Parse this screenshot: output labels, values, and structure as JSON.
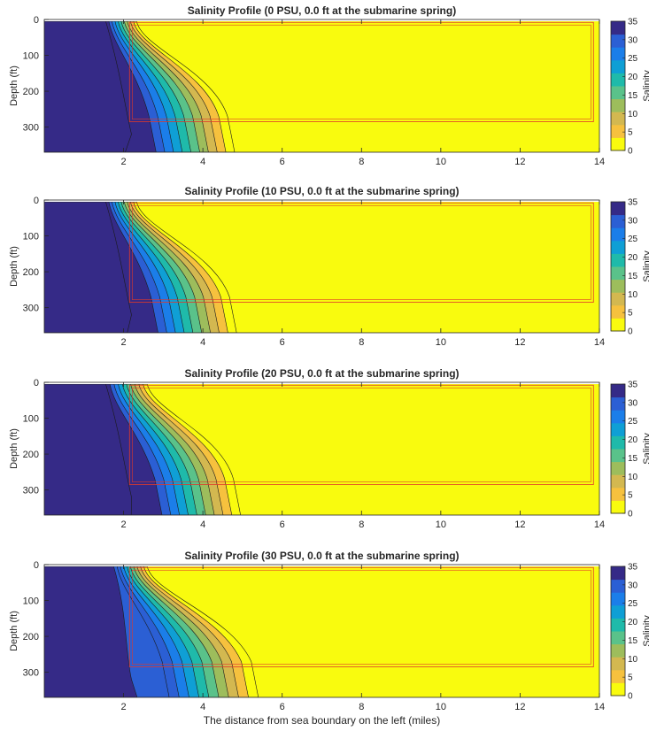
{
  "figure": {
    "xlabel": "The distance from sea boundary on the left (miles)"
  },
  "colorbar": {
    "label": "Salinity",
    "ticks": [
      0,
      5,
      10,
      15,
      20,
      25,
      30,
      35
    ],
    "colors": [
      "#f9fb0e",
      "#f6c13e",
      "#d3b850",
      "#9dbd5c",
      "#5ac28a",
      "#1fbaaa",
      "#0f9fd5",
      "#1b7ee9",
      "#2b5fd4",
      "#352a87"
    ]
  },
  "contour_colors": {
    "sea": "#352a87",
    "fresh": "#f9fb0e",
    "line": "#1a1a1a",
    "frame": "#e0392b"
  },
  "chart_data": [
    {
      "type": "heatmap",
      "title": "Salinity Profile (0 PSU, 0.0 ft at the submarine spring)",
      "spring_salinity": 0,
      "xlabel": "",
      "ylabel": "Depth (ft)",
      "xlim": [
        0,
        14
      ],
      "ylim": [
        0,
        370
      ],
      "xticks": [
        2,
        4,
        6,
        8,
        10,
        12,
        14
      ],
      "yticks": [
        0,
        100,
        200,
        300
      ],
      "y_reversed": true,
      "front_top_miles": 1.55,
      "front_bottom_miles": 4.8
    },
    {
      "type": "heatmap",
      "title": "Salinity Profile (10 PSU, 0.0 ft at the submarine spring)",
      "spring_salinity": 10,
      "xlabel": "",
      "ylabel": "Depth (ft)",
      "xlim": [
        0,
        14
      ],
      "ylim": [
        0,
        370
      ],
      "xticks": [
        2,
        4,
        6,
        8,
        10,
        12,
        14
      ],
      "yticks": [
        0,
        100,
        200,
        300
      ],
      "y_reversed": true,
      "front_top_miles": 1.55,
      "front_bottom_miles": 4.85
    },
    {
      "type": "heatmap",
      "title": "Salinity Profile (20 PSU, 0.0 ft at the submarine spring)",
      "spring_salinity": 20,
      "xlabel": "",
      "ylabel": "Depth (ft)",
      "xlim": [
        0,
        14
      ],
      "ylim": [
        0,
        370
      ],
      "xticks": [
        2,
        4,
        6,
        8,
        10,
        12,
        14
      ],
      "yticks": [
        0,
        100,
        200,
        300
      ],
      "y_reversed": true,
      "front_top_miles": 1.55,
      "front_bottom_miles": 4.95
    },
    {
      "type": "heatmap",
      "title": "Salinity Profile (30 PSU, 0.0 ft at the submarine spring)",
      "spring_salinity": 30,
      "xlabel": "The distance from sea boundary on the left (miles)",
      "ylabel": "Depth (ft)",
      "xlim": [
        0,
        14
      ],
      "ylim": [
        0,
        370
      ],
      "xticks": [
        2,
        4,
        6,
        8,
        10,
        12,
        14
      ],
      "yticks": [
        0,
        100,
        200,
        300
      ],
      "y_reversed": true,
      "front_top_miles": 1.75,
      "front_bottom_miles": 5.4
    }
  ]
}
